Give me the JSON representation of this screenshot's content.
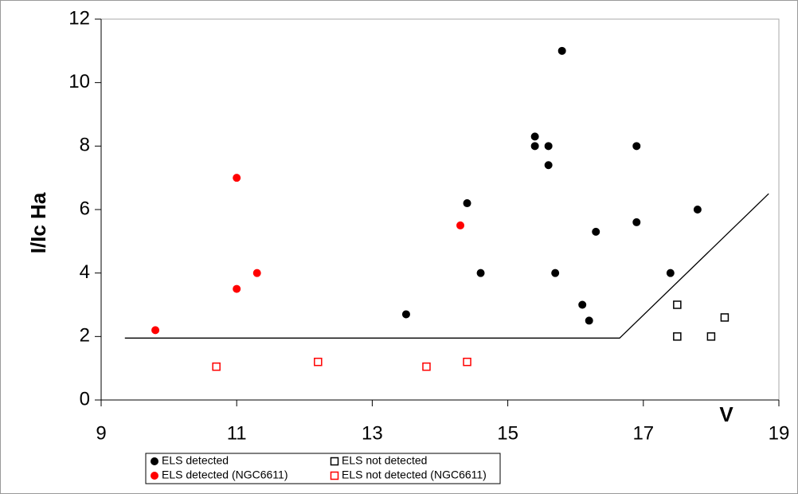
{
  "chart_data": {
    "type": "scatter",
    "xlabel": "V",
    "ylabel": "I/Ic Ha",
    "xlim": [
      9,
      19
    ],
    "ylim": [
      0,
      12
    ],
    "xticks": [
      9,
      11,
      13,
      15,
      17,
      19
    ],
    "yticks": [
      0,
      2,
      4,
      6,
      8,
      10,
      12
    ],
    "series": [
      {
        "name": "ELS detected",
        "color": "#000000",
        "marker": "circle",
        "filled": true,
        "x": [
          13.5,
          14.4,
          14.6,
          15.4,
          15.4,
          15.6,
          15.6,
          15.8,
          15.7,
          16.1,
          16.2,
          16.3,
          16.9,
          16.9,
          17.4,
          17.8
        ],
        "values": [
          2.7,
          6.2,
          4.0,
          8.3,
          8.0,
          8.0,
          7.4,
          11.0,
          4.0,
          3.0,
          2.5,
          5.3,
          8.0,
          5.6,
          4.0,
          6.0
        ]
      },
      {
        "name": "ELS not detected",
        "color": "#000000",
        "marker": "square",
        "filled": false,
        "x": [
          17.5,
          17.5,
          18.0,
          18.2
        ],
        "values": [
          3.0,
          2.0,
          2.0,
          2.6
        ]
      },
      {
        "name": "ELS detected (NGC6611)",
        "color": "#ff0000",
        "marker": "circle",
        "filled": true,
        "x": [
          9.8,
          11.0,
          11.0,
          11.3,
          14.3
        ],
        "values": [
          2.2,
          7.0,
          3.5,
          4.0,
          5.5
        ]
      },
      {
        "name": "ELS not detected (NGC6611)",
        "color": "#ff0000",
        "marker": "square",
        "filled": false,
        "x": [
          10.7,
          12.2,
          13.8,
          14.4
        ],
        "values": [
          1.05,
          1.2,
          1.05,
          1.2
        ]
      }
    ],
    "boundary": {
      "color": "#000000",
      "x": [
        9.35,
        16.65,
        18.85
      ],
      "values": [
        1.95,
        1.95,
        6.5
      ]
    }
  }
}
